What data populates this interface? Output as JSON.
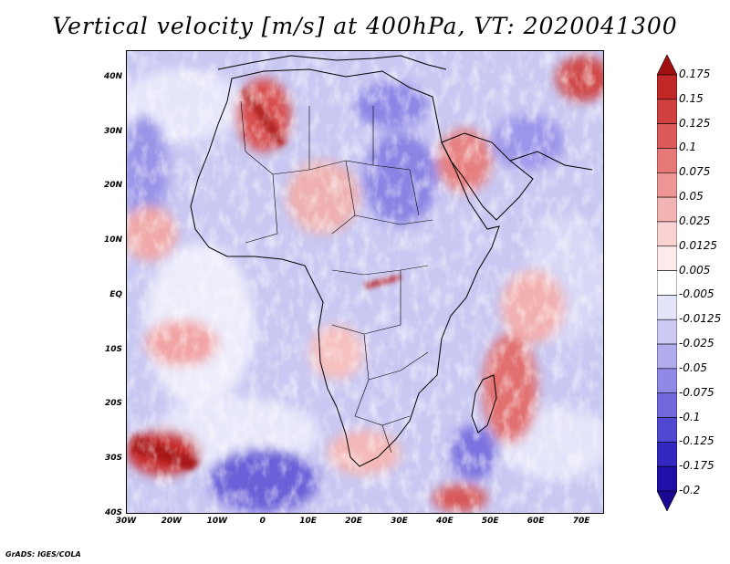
{
  "title": "Vertical velocity [m/s] at 400hPa, VT: 2020041300",
  "footer": "GrADS: IGES/COLA",
  "map": {
    "lat_labels": [
      "40N",
      "30N",
      "20N",
      "10N",
      "EQ",
      "10S",
      "20S",
      "30S",
      "40S"
    ],
    "lon_labels": [
      "30W",
      "20W",
      "10W",
      "0",
      "10E",
      "20E",
      "30E",
      "40E",
      "50E",
      "60E",
      "70E"
    ],
    "lat_range": [
      -40,
      45
    ],
    "lon_range": [
      -30,
      75
    ]
  },
  "colorbar": {
    "labels": [
      "0.175",
      "0.15",
      "0.125",
      "0.1",
      "0.075",
      "0.05",
      "0.025",
      "0.0125",
      "0.005",
      "-0.005",
      "-0.0125",
      "-0.025",
      "-0.05",
      "-0.075",
      "-0.1",
      "-0.125",
      "-0.175",
      "-0.2"
    ],
    "colors": [
      "#a01010",
      "#c02828",
      "#d04040",
      "#dc5a5a",
      "#e67878",
      "#ee9696",
      "#f4b4b4",
      "#f9d2d2",
      "#fdebeb",
      "#ffffff",
      "#e4e4fa",
      "#cccaf4",
      "#b0acee",
      "#908ae6",
      "#7068dc",
      "#5048d0",
      "#3428c0",
      "#2010a8",
      "#1a0890"
    ]
  }
}
